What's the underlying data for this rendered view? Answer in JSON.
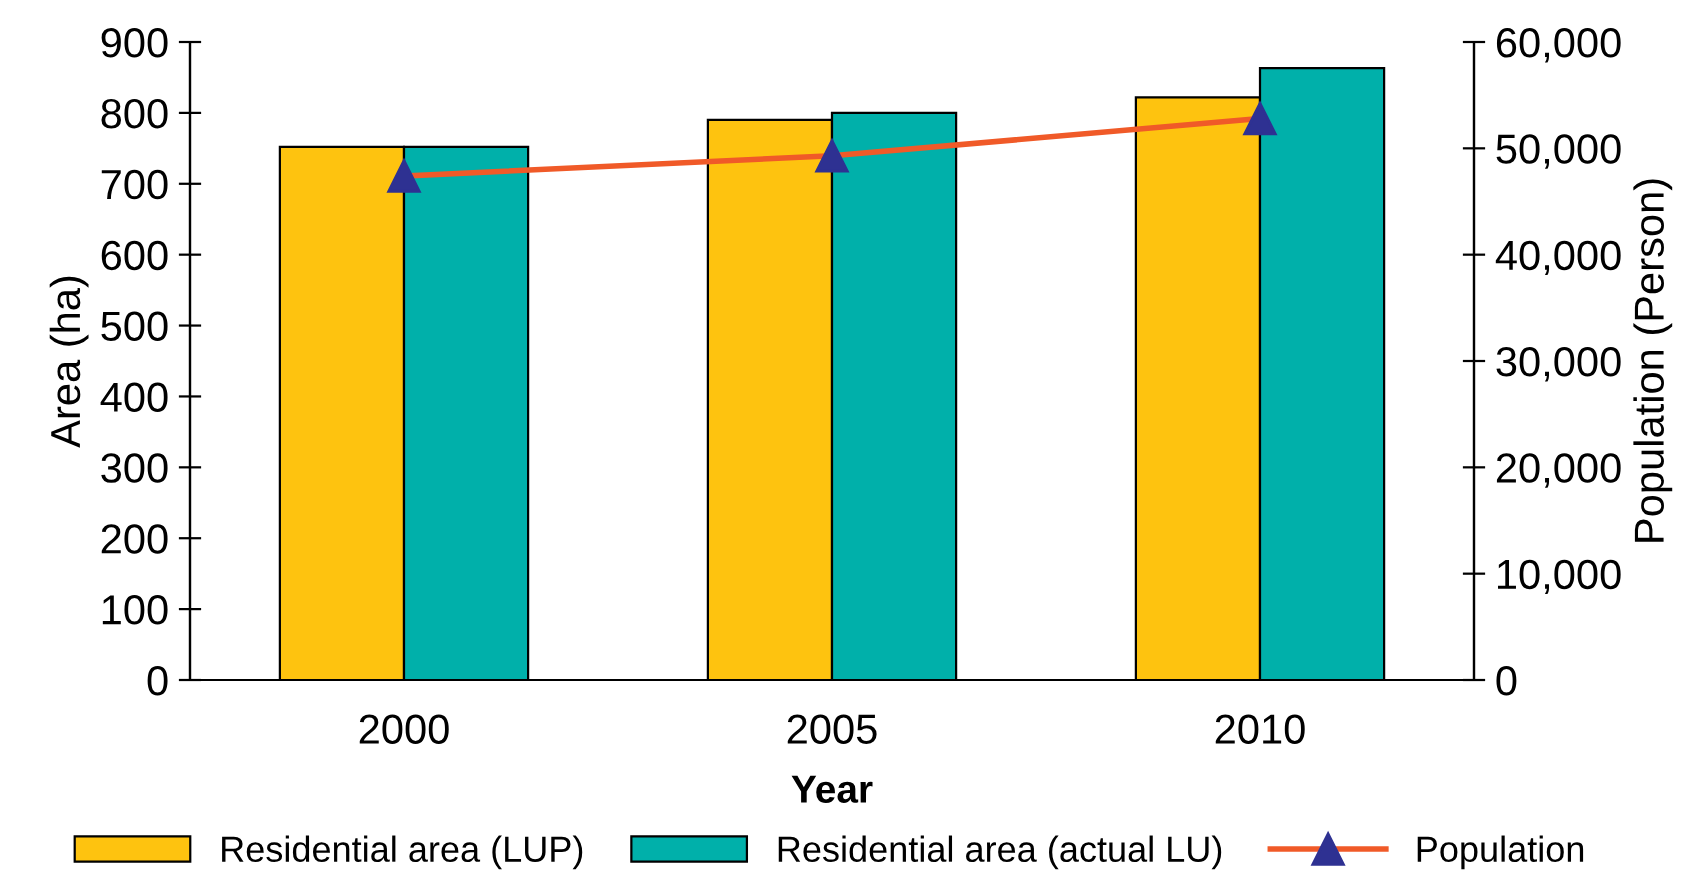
{
  "chart_data": {
    "type": "bar",
    "xlabel": "Year",
    "ylabel": "Area (ha)",
    "y2label": "Population (Person)",
    "categories": [
      "2000",
      "2005",
      "2010"
    ],
    "series": [
      {
        "name": "Residential area (LUP)",
        "color": "#fec30f",
        "values": [
          752,
          790,
          822
        ]
      },
      {
        "name": "Residential area (actual LU)",
        "color": "#00b0aa",
        "values": [
          752,
          800,
          863
        ]
      },
      {
        "name": "Population",
        "type": "line",
        "axis": "y2",
        "color": "#f05a28",
        "marker": "triangle",
        "values": [
          47400,
          49300,
          52800
        ]
      }
    ],
    "ylim": [
      0,
      900
    ],
    "yticks": [
      0,
      100,
      200,
      300,
      400,
      500,
      600,
      700,
      800,
      900
    ],
    "y2lim": [
      0,
      60000
    ],
    "y2ticks": [
      {
        "value": 0,
        "label": "0"
      },
      {
        "value": 10000,
        "label": "10,000"
      },
      {
        "value": 20000,
        "label": "20,000"
      },
      {
        "value": 30000,
        "label": "30,000"
      },
      {
        "value": 40000,
        "label": "40,000"
      },
      {
        "value": 50000,
        "label": "50,000"
      },
      {
        "value": 60000,
        "label": "60,000"
      }
    ],
    "grid": false,
    "legend": "bottom"
  }
}
